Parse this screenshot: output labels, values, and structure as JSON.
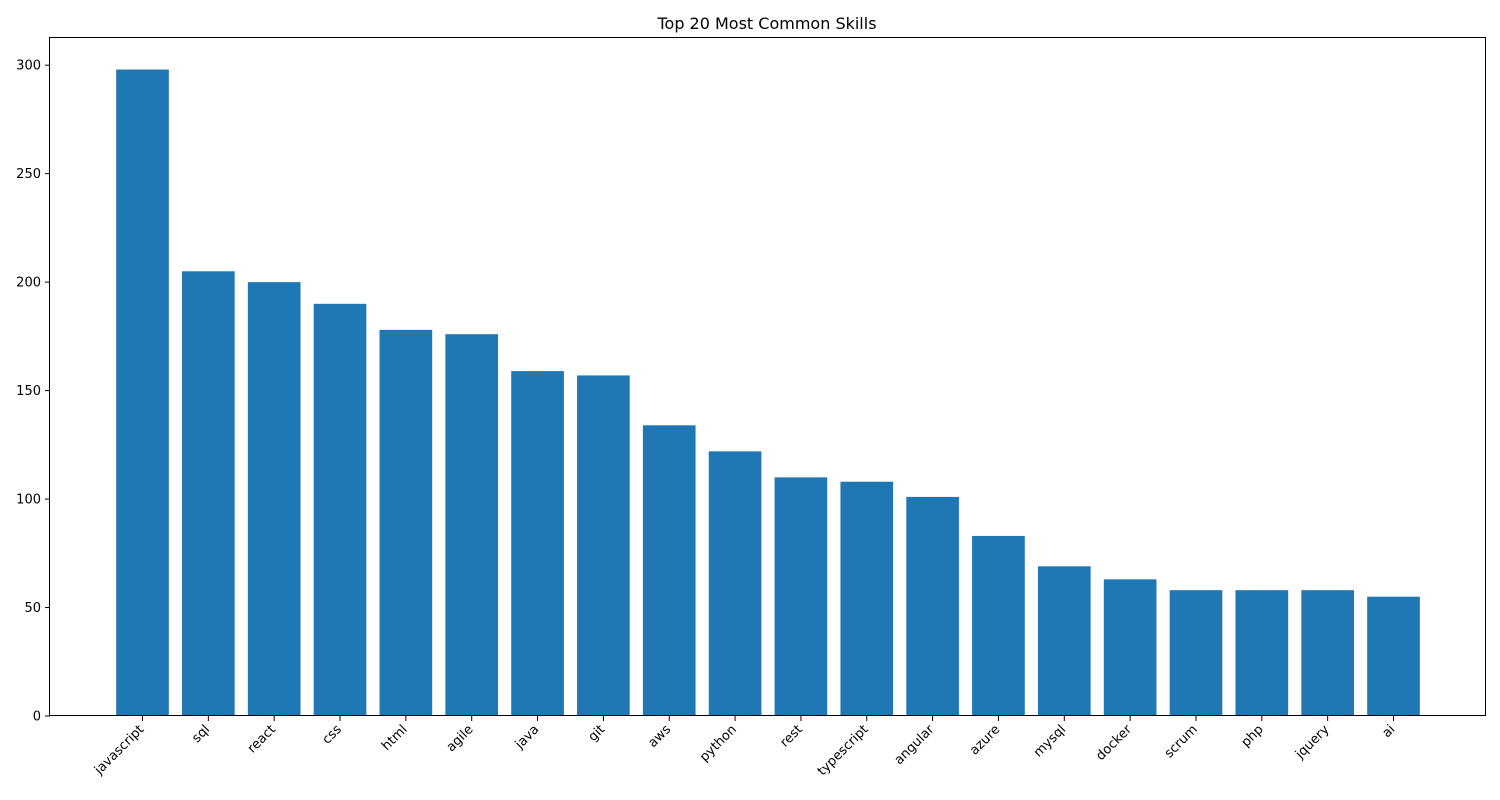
{
  "chart_data": {
    "type": "bar",
    "title": "Top 20 Most Common Skills",
    "xlabel": "",
    "ylabel": "",
    "categories": [
      "javascript",
      "sql",
      "react",
      "css",
      "html",
      "agile",
      "java",
      "git",
      "aws",
      "python",
      "rest",
      "typescript",
      "angular",
      "azure",
      "mysql",
      "docker",
      "scrum",
      "php",
      "jquery",
      "ai"
    ],
    "values": [
      298,
      205,
      200,
      190,
      178,
      176,
      159,
      157,
      134,
      122,
      110,
      108,
      101,
      83,
      69,
      63,
      58,
      58,
      58,
      55
    ],
    "ylim": [
      0,
      313
    ],
    "yticks": [
      0,
      50,
      100,
      150,
      200,
      250,
      300
    ],
    "bar_color": "#1f77b4",
    "grid": false,
    "legend": "none"
  }
}
